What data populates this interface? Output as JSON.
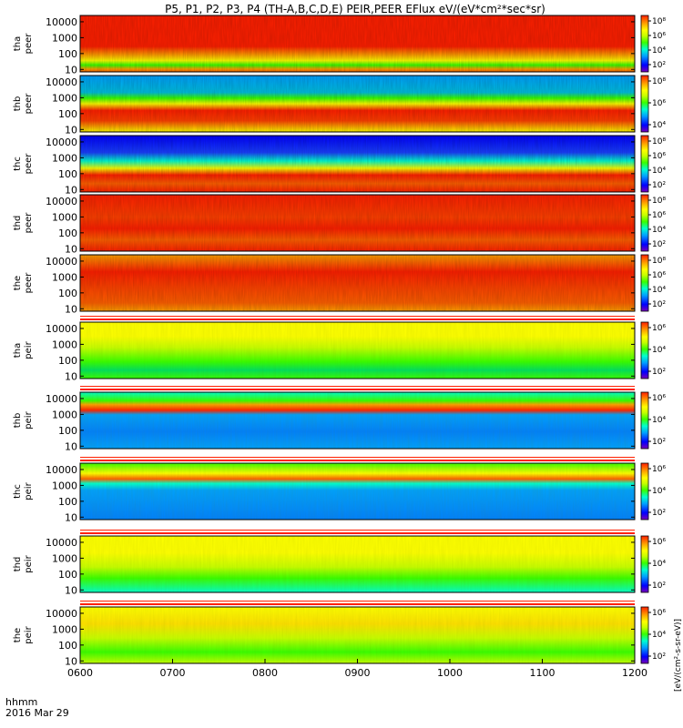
{
  "title": "P5, P1, P2, P3, P4 (TH-A,B,C,D,E) PEIR,PEER EFlux eV/(eV*cm²*sec*sr)",
  "footer": {
    "row1": "hhmm",
    "row2": "2016 Mar 29"
  },
  "colorbar_units": "[eV/(cm²-s-sr-eV)]",
  "colormap": [
    "#7a00b8",
    "#0000ff",
    "#00a0ff",
    "#00ffd0",
    "#38ff00",
    "#c8ff00",
    "#ffff00",
    "#ffa000",
    "#ff2000"
  ],
  "chart_data": {
    "type": "heatmap",
    "x": {
      "ticks": [
        "0600",
        "0700",
        "0800",
        "0900",
        "1000",
        "1100",
        "1200"
      ],
      "range_hours": [
        6,
        12
      ]
    },
    "y": {
      "scale": "log",
      "range_eV": [
        7,
        25000
      ],
      "ticks": [
        "10",
        "100",
        "1000",
        "10000"
      ]
    },
    "panels": [
      {
        "probe": "tha",
        "species": "peer",
        "cb_ticks": [
          "10²",
          "10⁴",
          "10⁶",
          "10⁸"
        ]
      },
      {
        "probe": "thb",
        "species": "peer",
        "cb_ticks": [
          "10⁴",
          "10⁶",
          "10⁸"
        ]
      },
      {
        "probe": "thc",
        "species": "peer",
        "cb_ticks": [
          "10²",
          "10⁴",
          "10⁶",
          "10⁸"
        ]
      },
      {
        "probe": "thd",
        "species": "peer",
        "cb_ticks": [
          "10²",
          "10⁴",
          "10⁶",
          "10⁸"
        ]
      },
      {
        "probe": "the",
        "species": "peer",
        "cb_ticks": [
          "10²",
          "10⁴",
          "10⁶",
          "10⁸"
        ]
      },
      {
        "probe": "tha",
        "species": "peir",
        "cb_ticks": [
          "10²",
          "10⁴",
          "10⁶"
        ]
      },
      {
        "probe": "thb",
        "species": "peir",
        "cb_ticks": [
          "10²",
          "10⁴",
          "10⁶"
        ]
      },
      {
        "probe": "thc",
        "species": "peir",
        "cb_ticks": [
          "10²",
          "10⁴",
          "10⁶"
        ]
      },
      {
        "probe": "thd",
        "species": "peir",
        "cb_ticks": [
          "10²",
          "10⁴",
          "10⁶"
        ]
      },
      {
        "probe": "the",
        "species": "peir",
        "cb_ticks": [
          "10²",
          "10⁴",
          "10⁶"
        ]
      }
    ]
  }
}
